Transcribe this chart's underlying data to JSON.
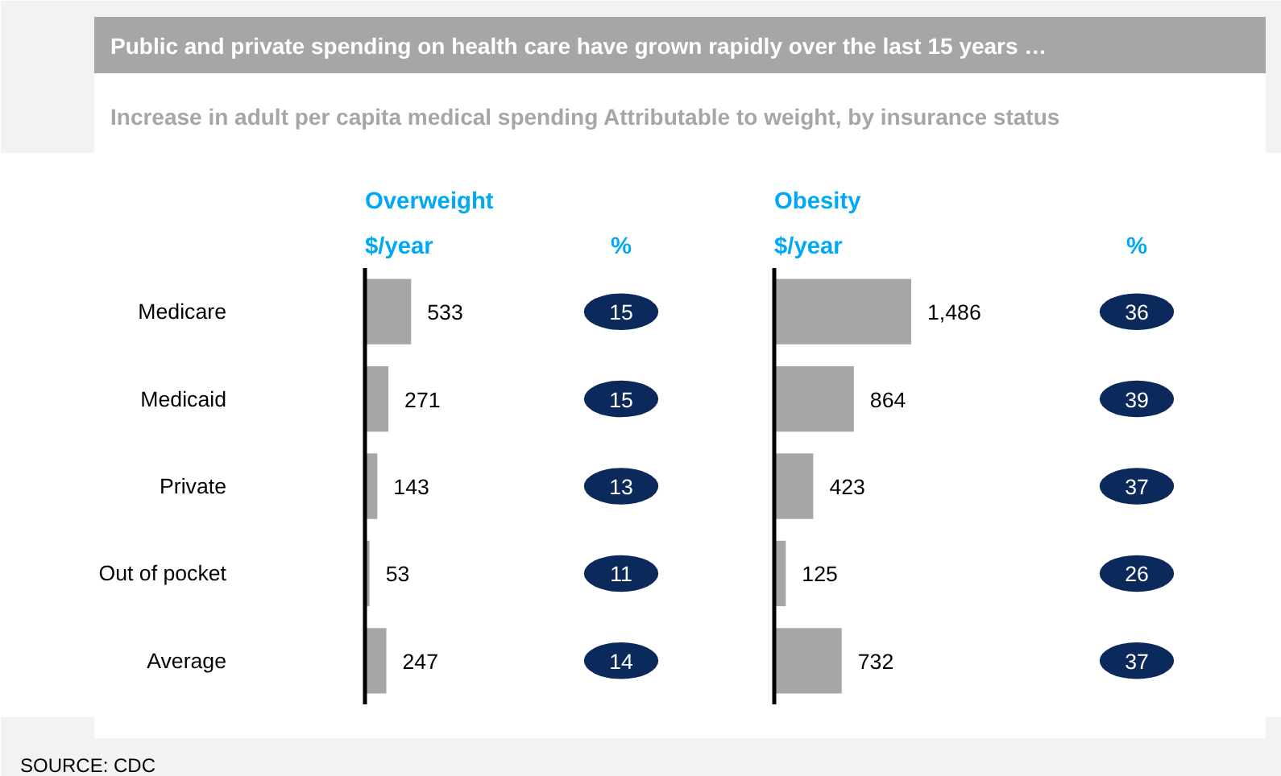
{
  "chart_data": [
    {
      "type": "other",
      "title": "Public and private spending on health care have grown rapidly over the last 15 years …",
      "subtitle": "Increase in adult per capita medical spending Attributable to weight, by insurance status",
      "annotations": [
        "SOURCE: CDC"
      ]
    },
    {
      "type": "bar",
      "orientation": "horizontal",
      "title": "Overweight",
      "xlabel": "$/year",
      "categories": [
        "Medicare",
        "Medicaid",
        "Private",
        "Out of pocket",
        "Average"
      ],
      "values": [
        533,
        271,
        143,
        53,
        247
      ],
      "value_labels": [
        "533",
        "271",
        "143",
        "53",
        "247"
      ],
      "color": "#a6a6a6",
      "tick_labels": "y"
    },
    {
      "type": "other",
      "title": "%",
      "values": [
        15,
        15,
        13,
        11,
        14
      ],
      "color": "#0b2a5b",
      "data_labels": true
    },
    {
      "type": "bar",
      "orientation": "horizontal",
      "title": "Obesity",
      "xlabel": "$/year",
      "categories": [
        null,
        null,
        null,
        null,
        null
      ],
      "values": [
        1486,
        864,
        423,
        125,
        732
      ],
      "value_labels": [
        "1,486",
        "864",
        "423",
        "125",
        "732"
      ],
      "color": "#a6a6a6",
      "tick_labels": false
    },
    {
      "type": "other",
      "title": "%",
      "values": [
        36,
        39,
        37,
        26,
        37
      ],
      "color": "#0b2a5b",
      "data_labels": true
    }
  ]
}
